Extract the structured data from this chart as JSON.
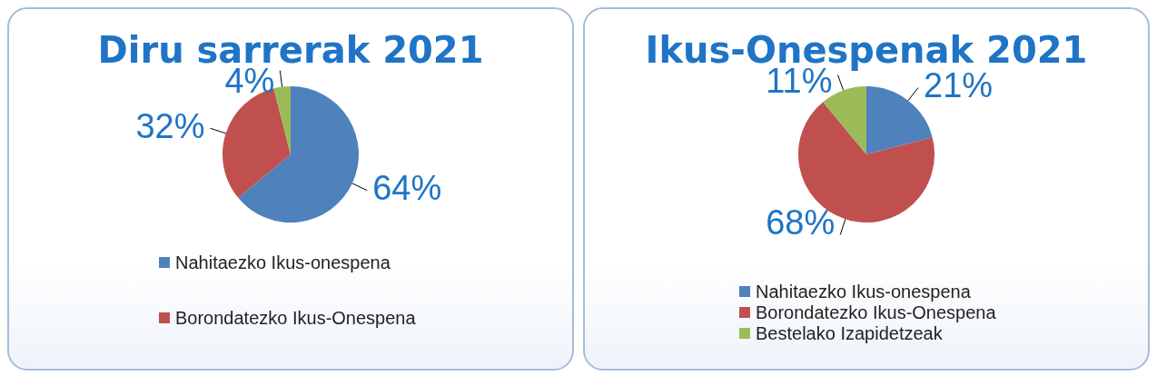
{
  "chart_data": [
    {
      "type": "pie",
      "title": "Diru sarrerak 2021",
      "categories": [
        "Nahitaezko Ikus-onespena",
        "Borondatezko Ikus-Onespena",
        null
      ],
      "values": [
        64,
        32,
        4
      ],
      "colors": [
        "#4f81bd",
        "#c0504d",
        "#9bbb59"
      ],
      "value_labels": [
        "64%",
        "32%",
        "4%"
      ],
      "legend": "bottom"
    },
    {
      "type": "pie",
      "title": "Ikus-Onespenak 2021",
      "categories": [
        "Nahitaezko Ikus-onespena",
        "Borondatezko Ikus-Onespena",
        "Bestelako Izapidetzeak"
      ],
      "values": [
        21,
        68,
        11
      ],
      "colors": [
        "#4f81bd",
        "#c0504d",
        "#9bbb59"
      ],
      "value_labels": [
        "21%",
        "68%",
        "11%"
      ],
      "legend": "bottom"
    }
  ]
}
